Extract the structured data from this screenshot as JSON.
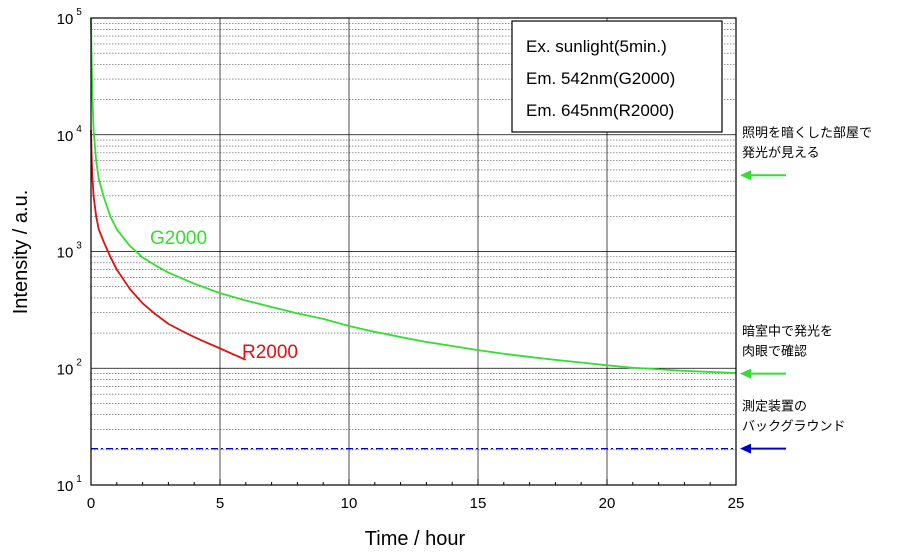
{
  "chart_data": {
    "type": "line",
    "xlabel": "Time / hour",
    "ylabel": "Intensity / a.u.",
    "xlim": [
      0,
      25
    ],
    "ylim": [
      10,
      100000
    ],
    "y_scale": "log",
    "x_ticks": [
      0,
      5,
      10,
      15,
      20,
      25
    ],
    "y_ticks": [
      {
        "base": "10",
        "exp": "1",
        "value": 10
      },
      {
        "base": "10",
        "exp": "2",
        "value": 100
      },
      {
        "base": "10",
        "exp": "3",
        "value": 1000
      },
      {
        "base": "10",
        "exp": "4",
        "value": 10000
      },
      {
        "base": "10",
        "exp": "5",
        "value": 100000
      }
    ],
    "grid": true,
    "legend": {
      "placement": "top-right",
      "lines": [
        "Ex. sunlight(5min.)",
        "Em. 542nm(G2000)",
        "Em. 645nm(R2000)"
      ]
    },
    "series": [
      {
        "name": "G2000",
        "color": "#33dd33",
        "x": [
          0,
          0.02,
          0.05,
          0.1,
          0.2,
          0.3,
          0.5,
          0.75,
          1,
          1.5,
          2,
          2.5,
          3,
          4,
          5,
          6,
          7,
          8,
          9,
          10,
          11,
          12,
          13,
          14,
          15,
          16,
          17,
          18,
          19,
          20,
          21,
          22,
          23,
          24,
          25
        ],
        "y": [
          100000,
          50000,
          22000,
          11000,
          6000,
          4200,
          2900,
          2000,
          1550,
          1120,
          890,
          760,
          660,
          530,
          440,
          380,
          335,
          295,
          265,
          230,
          205,
          185,
          168,
          155,
          143,
          133,
          125,
          118,
          112,
          106,
          101,
          98,
          95,
          93,
          91
        ]
      },
      {
        "name": "R2000",
        "color": "#dd1111",
        "x": [
          0,
          0.02,
          0.05,
          0.1,
          0.2,
          0.3,
          0.5,
          0.75,
          1,
          1.5,
          2,
          2.5,
          3,
          3.5,
          4,
          4.5,
          5,
          5.5,
          6
        ],
        "y": [
          11000,
          7000,
          4500,
          3000,
          2000,
          1550,
          1200,
          900,
          700,
          480,
          360,
          290,
          240,
          210,
          185,
          165,
          148,
          132,
          118
        ]
      },
      {
        "name": "background",
        "color": "#0000cc",
        "style": "dash-dot",
        "x": [
          0,
          25
        ],
        "y": [
          20.5,
          20.5
        ]
      }
    ],
    "annotations": [
      {
        "lines": [
          "照明を暗くした部屋で",
          "発光が見える"
        ],
        "value": 4500,
        "arrow_color": "#33dd33"
      },
      {
        "lines": [
          "暗室中で発光を",
          "肉眼で確認"
        ],
        "value": 90,
        "arrow_color": "#33dd33"
      },
      {
        "lines": [
          "測定装置の",
          "バックグラウンド"
        ],
        "value": 20.5,
        "arrow_color": "#0000cc"
      }
    ]
  }
}
